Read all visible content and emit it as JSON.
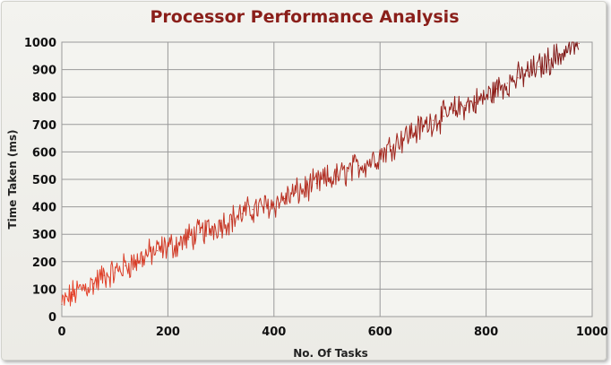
{
  "chart_data": {
    "type": "line",
    "title": "Processor Performance Analysis",
    "xlabel": "No. Of Tasks",
    "ylabel": "Time Taken (ms)",
    "xlim": [
      0,
      1000
    ],
    "ylim": [
      0,
      1000
    ],
    "x_ticks": [
      0,
      200,
      400,
      600,
      800,
      1000
    ],
    "y_ticks": [
      0,
      100,
      200,
      300,
      400,
      500,
      600,
      700,
      800,
      900,
      1000
    ],
    "grid": true,
    "colors": {
      "line_start": "#e8432a",
      "line_end": "#7a1414",
      "grid": "#9a9a9a",
      "title": "#8a1f1a"
    },
    "series": [
      {
        "x": [
          0,
          20,
          40,
          60,
          80,
          100,
          120,
          140,
          160,
          180,
          200,
          220,
          240,
          260,
          280,
          300,
          320,
          340,
          360,
          380,
          400,
          420,
          440,
          460,
          480,
          500,
          520,
          540,
          560,
          580,
          600,
          620,
          640,
          660,
          680,
          700,
          720,
          740,
          760,
          780,
          800,
          820,
          840,
          860,
          880,
          900,
          920,
          940,
          960,
          975
        ],
        "y": [
          45,
          80,
          105,
          120,
          150,
          160,
          185,
          200,
          225,
          240,
          255,
          265,
          290,
          305,
          320,
          340,
          355,
          375,
          390,
          400,
          410,
          430,
          450,
          465,
          485,
          500,
          510,
          530,
          550,
          565,
          590,
          620,
          650,
          670,
          690,
          715,
          730,
          750,
          770,
          780,
          800,
          830,
          850,
          870,
          890,
          910,
          935,
          955,
          980,
          995
        ]
      }
    ]
  }
}
